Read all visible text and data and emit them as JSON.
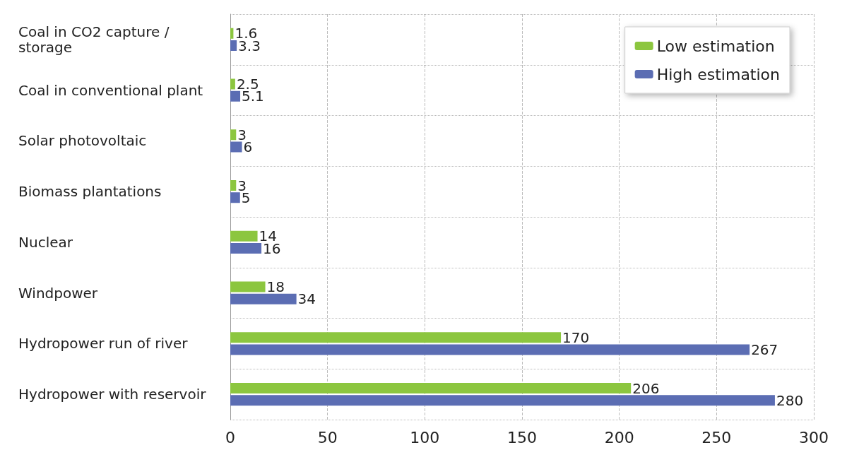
{
  "chart_data": {
    "type": "bar",
    "orientation": "horizontal",
    "categories": [
      "Coal in CO2 capture /storage",
      "Coal in conventional plant",
      "Solar photovoltaic",
      "Biomass plantations",
      "Nuclear",
      "Windpower",
      "Hydropower run of river",
      "Hydropower with reservoir"
    ],
    "series": [
      {
        "name": "Low estimation",
        "color": "#8cc63f",
        "values": [
          1.6,
          2.5,
          3,
          3,
          14,
          18,
          170,
          206
        ]
      },
      {
        "name": "High estimation",
        "color": "#5b6db3",
        "values": [
          3.3,
          5.1,
          6,
          5,
          16,
          34,
          267,
          280
        ]
      }
    ],
    "xlim": [
      0,
      300
    ],
    "xticks": [
      0,
      50,
      100,
      150,
      200,
      250,
      300
    ],
    "grid": true,
    "legend": "top right",
    "data_labels": true
  }
}
